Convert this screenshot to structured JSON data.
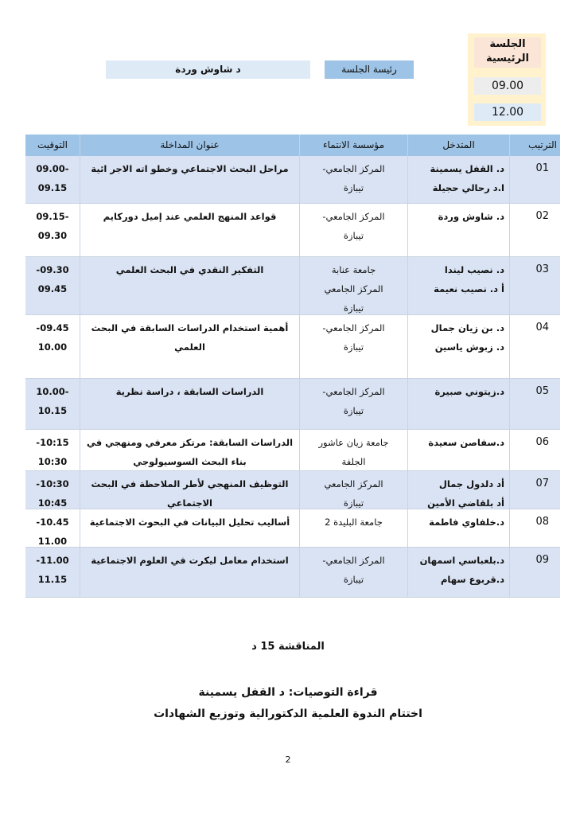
{
  "session": {
    "title": "الجلسة الرئيسية",
    "start": "09.00",
    "end": "12.00"
  },
  "chair": {
    "label": "رئيسة الجلسة",
    "name": "د شاوش وردة"
  },
  "table": {
    "headers": {
      "rank": "الترتيب",
      "speaker": "المتدخل",
      "institution": "مؤسسة الانتماء",
      "title": "عنوان المداخلة",
      "time": "التوقيت"
    },
    "rows": [
      {
        "rank": "01",
        "speakers": [
          "د. القفل يسمينة",
          "ا.د رحالي حجيلة"
        ],
        "institution": [
          "المركز الجامعي-",
          "تيبازة"
        ],
        "title": "مراحل البحث الاجتماعي وخطو اته الاجر ائية",
        "time": [
          "09.00-",
          "09.15"
        ]
      },
      {
        "rank": "02",
        "speakers": [
          "د. شاوش وردة"
        ],
        "institution": [
          "المركز الجامعي-",
          "تيبازة"
        ],
        "title": "قواعد المنهج العلمي عند إميل دوركايم",
        "time": [
          "09.15-",
          "09.30"
        ]
      },
      {
        "rank": "03",
        "speakers": [
          "د. نصيب ليندا",
          "أ د. نصيب نعيمة"
        ],
        "institution": [
          "جامعة عنابة",
          "المركز الجامعي",
          "تيبازة"
        ],
        "title": "التفكير النقدي في البحث العلمي",
        "time": [
          "-09.30",
          "09.45"
        ]
      },
      {
        "rank": "04",
        "speakers": [
          "د. بن زيان جمال",
          "د. زبوش ياسين"
        ],
        "institution": [
          "المركز الجامعي-",
          "تيبازة"
        ],
        "title": "أهمية استخدام الدراسات السابقة في البحث العلمي",
        "time": [
          "-09.45",
          "10.00"
        ]
      },
      {
        "rank": "05",
        "speakers": [
          "د.زيتوني صبيرة"
        ],
        "institution": [
          "المركز الجامعي-",
          "تيبازة"
        ],
        "title": "الدراسات السابقة ، دراسة نظرية",
        "time": [
          "10.00-",
          "10.15"
        ]
      },
      {
        "rank": "06",
        "speakers": [
          "د.سفاصن سعيدة"
        ],
        "institution": [
          "جامعة زيان عاشور",
          "الجلفة"
        ],
        "title": "الدراسات السابقة: مرتكز معرفي ومنهجي في بناء البحث السوسيولوجي",
        "time": [
          "-10:15",
          "10:30"
        ]
      },
      {
        "rank": "07",
        "speakers": [
          "أد دلدول جمال",
          "أد بلقاضي الأمين"
        ],
        "institution": [
          "المركز الجامعي",
          "تيبازة"
        ],
        "title": "التوظيف المنهجي لأطر الملاحظة في البحث الاجتماعي",
        "time": [
          "-10:30",
          "10:45"
        ]
      },
      {
        "rank": "08",
        "speakers": [
          "د.خلفاوي فاطمة"
        ],
        "institution": [
          "جامعة البليدة 2"
        ],
        "title": "أساليب تحليل البيانات في البحوث الاجتماعية",
        "time": [
          "-10.45",
          "11.00"
        ]
      },
      {
        "rank": "09",
        "speakers": [
          "د.بلعباسي اسمهان",
          "د.قربوع سهام"
        ],
        "institution": [
          "المركز الجامعي-",
          "تيبازة"
        ],
        "title": "استخدام معامل ليكرت في العلوم الاجتماعية",
        "time": [
          "-11.00",
          "11.15"
        ]
      }
    ]
  },
  "footer": {
    "discussion": "المناقشة 15 د",
    "recommendations": "قراءة التوصيات: د القفل يسمينة",
    "closing": "اختتام الندوة العلمية  الدكتورالية  وتوزيع الشهادات",
    "page_number": "2"
  },
  "colors": {
    "header": "#9dc3e6",
    "row_shade": "#dae3f3",
    "session_box": "#fff2cc",
    "session_title": "#fbe5d6"
  }
}
